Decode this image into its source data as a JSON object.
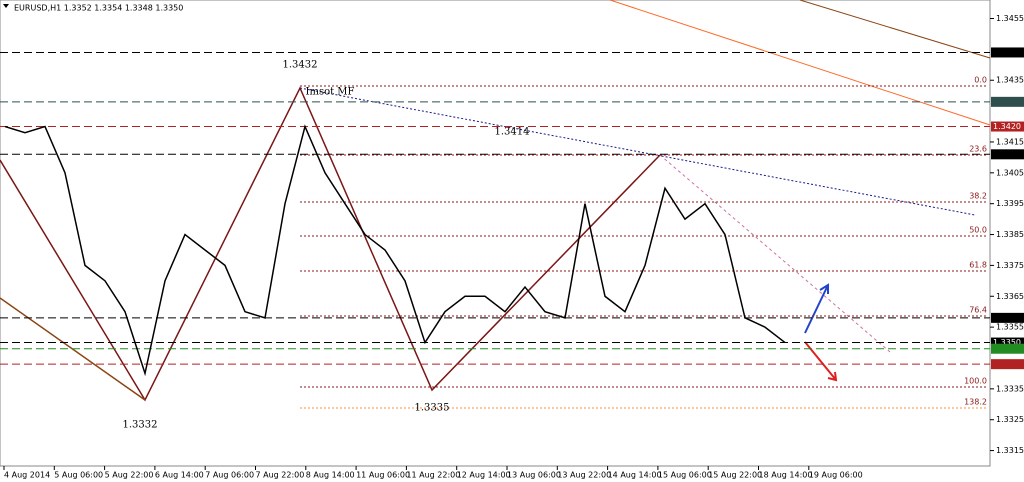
{
  "chart_data": {
    "type": "line",
    "title": "EURUSD,H1 1.3352 1.3354 1.3348 1.3350",
    "x": [
      0,
      1,
      2,
      3,
      4,
      5,
      6,
      7,
      8,
      9,
      10,
      11,
      12,
      13,
      14,
      15,
      16,
      17,
      18,
      19,
      20,
      21,
      22,
      23,
      24,
      25,
      26,
      27,
      28,
      29,
      30,
      31,
      32,
      33,
      34,
      35,
      36,
      37,
      38,
      39
    ],
    "series": [
      {
        "name": "EURUSD",
        "color": "#000000",
        "values": [
          1.342,
          1.3418,
          1.342,
          1.3405,
          1.3375,
          1.337,
          1.336,
          1.334,
          1.337,
          1.3385,
          1.338,
          1.3375,
          1.336,
          1.3358,
          1.3395,
          1.342,
          1.3405,
          1.3395,
          1.3385,
          1.338,
          1.337,
          1.335,
          1.336,
          1.3365,
          1.3365,
          1.336,
          1.3368,
          1.336,
          1.3358,
          1.3395,
          1.3365,
          1.336,
          1.3375,
          1.34,
          1.339,
          1.3395,
          1.3385,
          1.3358,
          1.3355,
          1.335
        ]
      }
    ],
    "xlim": [
      -0.25,
      49.25
    ],
    "ylim": [
      1.331,
      1.3461
    ],
    "yticks": [
      1.3455,
      1.3435,
      1.3415,
      1.3405,
      1.3395,
      1.3385,
      1.3375,
      1.3365,
      1.3355,
      1.3335,
      1.3325,
      1.3315
    ],
    "time_labels": [
      "4 Aug 2014",
      "5 Aug 06:00",
      "5 Aug 22:00",
      "6 Aug 14:00",
      "7 Aug 06:00",
      "7 Aug 22:00",
      "8 Aug 14:00",
      "11 Aug 06:00",
      "11 Aug 22:00",
      "12 Aug 14:00",
      "13 Aug 06:00",
      "13 Aug 22:00",
      "14 Aug 14:00",
      "15 Aug 06:00",
      "15 Aug 22:00",
      "18 Aug 14:00",
      "19 Aug 06:00"
    ],
    "levels": [
      {
        "value": 1.3444,
        "color": "#000000"
      },
      {
        "value": 1.3428,
        "color": "#2f4f4f"
      },
      {
        "value": 1.342,
        "label": "1.3420",
        "color": "#b22222"
      },
      {
        "value": 1.3411,
        "color": "#000000"
      },
      {
        "value": 1.3358,
        "color": "#000000"
      },
      {
        "value": 1.335,
        "label": "1.3350",
        "color": "#000000"
      },
      {
        "value": 1.3348,
        "color": "#228b22"
      },
      {
        "value": 1.3343,
        "color": "#b22222"
      }
    ],
    "fib_levels": [
      {
        "value": 0,
        "label": "0.0"
      },
      23.6,
      38.2,
      {
        "value": 50,
        "label": "50.0"
      },
      61.8,
      76.4,
      {
        "value": 100,
        "label": "100.0"
      },
      138.2
    ],
    "annotations": [
      "1.3432",
      "1.3332",
      "1.3335",
      "1.3414",
      "Imsot MF"
    ]
  }
}
